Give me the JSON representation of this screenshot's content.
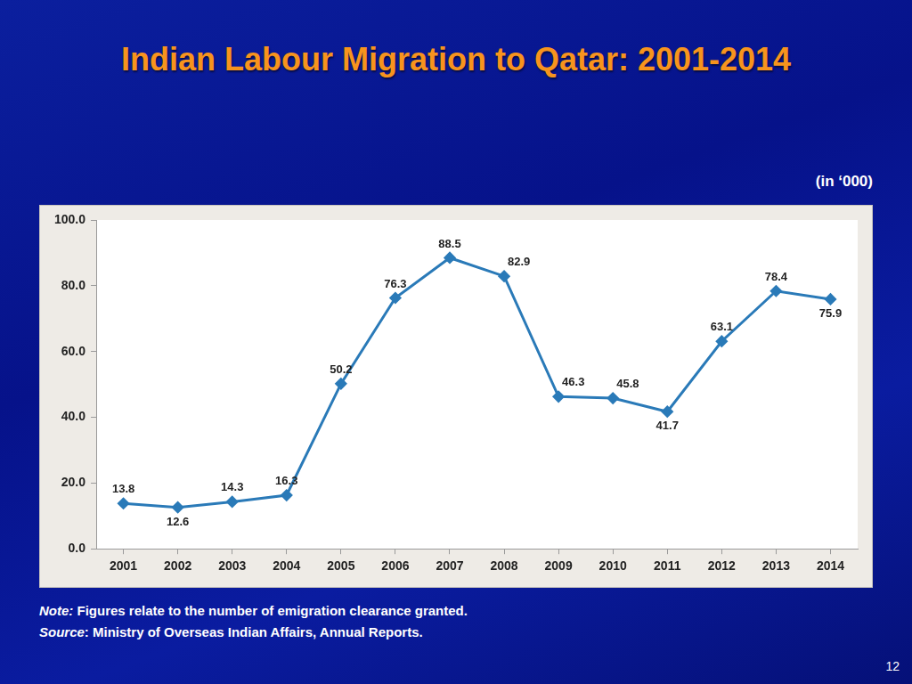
{
  "chart_data": {
    "type": "line",
    "title": "Indian Labour Migration to Qatar: 2001-2014",
    "ylabel": "(in ‘000)",
    "categories": [
      "2001",
      "2002",
      "2003",
      "2004",
      "2005",
      "2006",
      "2007",
      "2008",
      "2009",
      "2010",
      "2011",
      "2012",
      "2013",
      "2014"
    ],
    "values": [
      13.8,
      12.6,
      14.3,
      16.3,
      50.2,
      76.3,
      88.5,
      82.9,
      46.3,
      45.8,
      41.7,
      63.1,
      78.4,
      75.9
    ],
    "color": "#2a7ab8",
    "marker": "diamond",
    "line_style": "solid",
    "ylim": [
      0,
      100
    ],
    "yticks": [
      {
        "value": 0,
        "label": "0.0"
      },
      {
        "value": 20,
        "label": "20.0"
      },
      {
        "value": 40,
        "label": "40.0"
      },
      {
        "value": 60,
        "label": "60.0"
      },
      {
        "value": 80,
        "label": "80.0"
      },
      {
        "value": 100,
        "label": "100.0"
      }
    ],
    "grid": false,
    "data_labels": true
  },
  "slide": {
    "notes": [
      {
        "label": "Note:",
        "text": " Figures relate to the number of emigration clearance granted."
      },
      {
        "label": "Source",
        "text": ": Ministry of Overseas Indian Affairs, Annual Reports."
      }
    ],
    "page_number": "12"
  }
}
